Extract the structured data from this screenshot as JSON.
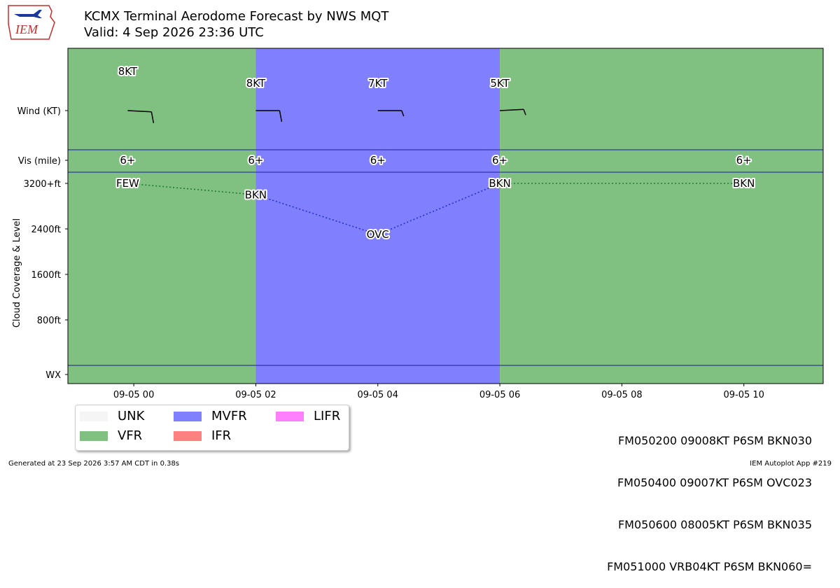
{
  "header": {
    "logo_text": "IEM",
    "title_line1": "KCMX Terminal Aerodome Forecast by NWS MQT",
    "title_line2": "Valid: 4 Sep 2026 23:36 UTC"
  },
  "chart_data": {
    "type": "timeline",
    "x_tick_labels": [
      "09-05 00",
      "09-05 02",
      "09-05 04",
      "09-05 06",
      "09-05 08",
      "09-05 10"
    ],
    "x_tick_hours": [
      0,
      2,
      4,
      6,
      8,
      10
    ],
    "x_range_hours": [
      -1.08,
      11.3
    ],
    "row_labels": {
      "wind": "Wind (KT)",
      "vis": "Vis (mile)",
      "cloud_axis": "Cloud Coverage & Level",
      "wx": "WX"
    },
    "cloud_ticks": [
      {
        "label": "3200+ft",
        "value": 3200
      },
      {
        "label": "2400ft",
        "value": 2400
      },
      {
        "label": "1600ft",
        "value": 1600
      },
      {
        "label": "800ft",
        "value": 800
      }
    ],
    "cloud_ylim": [
      -900,
      3600
    ],
    "categories_bands": [
      {
        "start": -1.08,
        "end": 2,
        "category": "VFR"
      },
      {
        "start": 2,
        "end": 6,
        "category": "MVFR"
      },
      {
        "start": 6,
        "end": 11.3,
        "category": "VFR"
      }
    ],
    "forecasts": [
      {
        "hour": -0.1,
        "wind_label": "8KT",
        "wind_dir": 100,
        "wind_kt": 8,
        "vis_label": "6+",
        "cloud_label": "FEW",
        "cloud_ft": 3200
      },
      {
        "hour": 2,
        "wind_label": "8KT",
        "wind_dir": 90,
        "wind_kt": 8,
        "vis_label": "6+",
        "cloud_label": "BKN",
        "cloud_ft": 3000
      },
      {
        "hour": 4,
        "wind_label": "7KT",
        "wind_dir": 90,
        "wind_kt": 7,
        "vis_label": "6+",
        "cloud_label": "OVC",
        "cloud_ft": 2300
      },
      {
        "hour": 6,
        "wind_label": "5KT",
        "wind_dir": 80,
        "wind_kt": 5,
        "vis_label": "6+",
        "cloud_label": "BKN",
        "cloud_ft": 3200
      },
      {
        "hour": 10,
        "wind_label": "",
        "wind_dir": null,
        "wind_kt": 4,
        "vis_label": "6+",
        "cloud_label": "BKN",
        "cloud_ft": 3200
      }
    ],
    "legend": [
      {
        "label": "UNK",
        "color": "#f5f5f5"
      },
      {
        "label": "VFR",
        "color": "#80c080"
      },
      {
        "label": "MVFR",
        "color": "#8080ff"
      },
      {
        "label": "IFR",
        "color": "#ff8080"
      },
      {
        "label": "LIFR",
        "color": "#ff80ff"
      }
    ],
    "colors": {
      "VFR": "#80c080",
      "MVFR": "#8080ff",
      "divider": "#1a1aa0",
      "vfr_line": "#1f7a3a",
      "mvfr_line": "#2030d0"
    }
  },
  "taf_text": [
    "FM050200 09008KT P6SM BKN030",
    "FM050400 09007KT P6SM OVC023",
    "FM050600 08005KT P6SM BKN035",
    "FM051000 VRB04KT P6SM BKN060="
  ],
  "footer": {
    "generated": "Generated at 23 Sep 2026 3:57 AM CDT in 0.38s",
    "app": "IEM Autoplot App #219"
  }
}
